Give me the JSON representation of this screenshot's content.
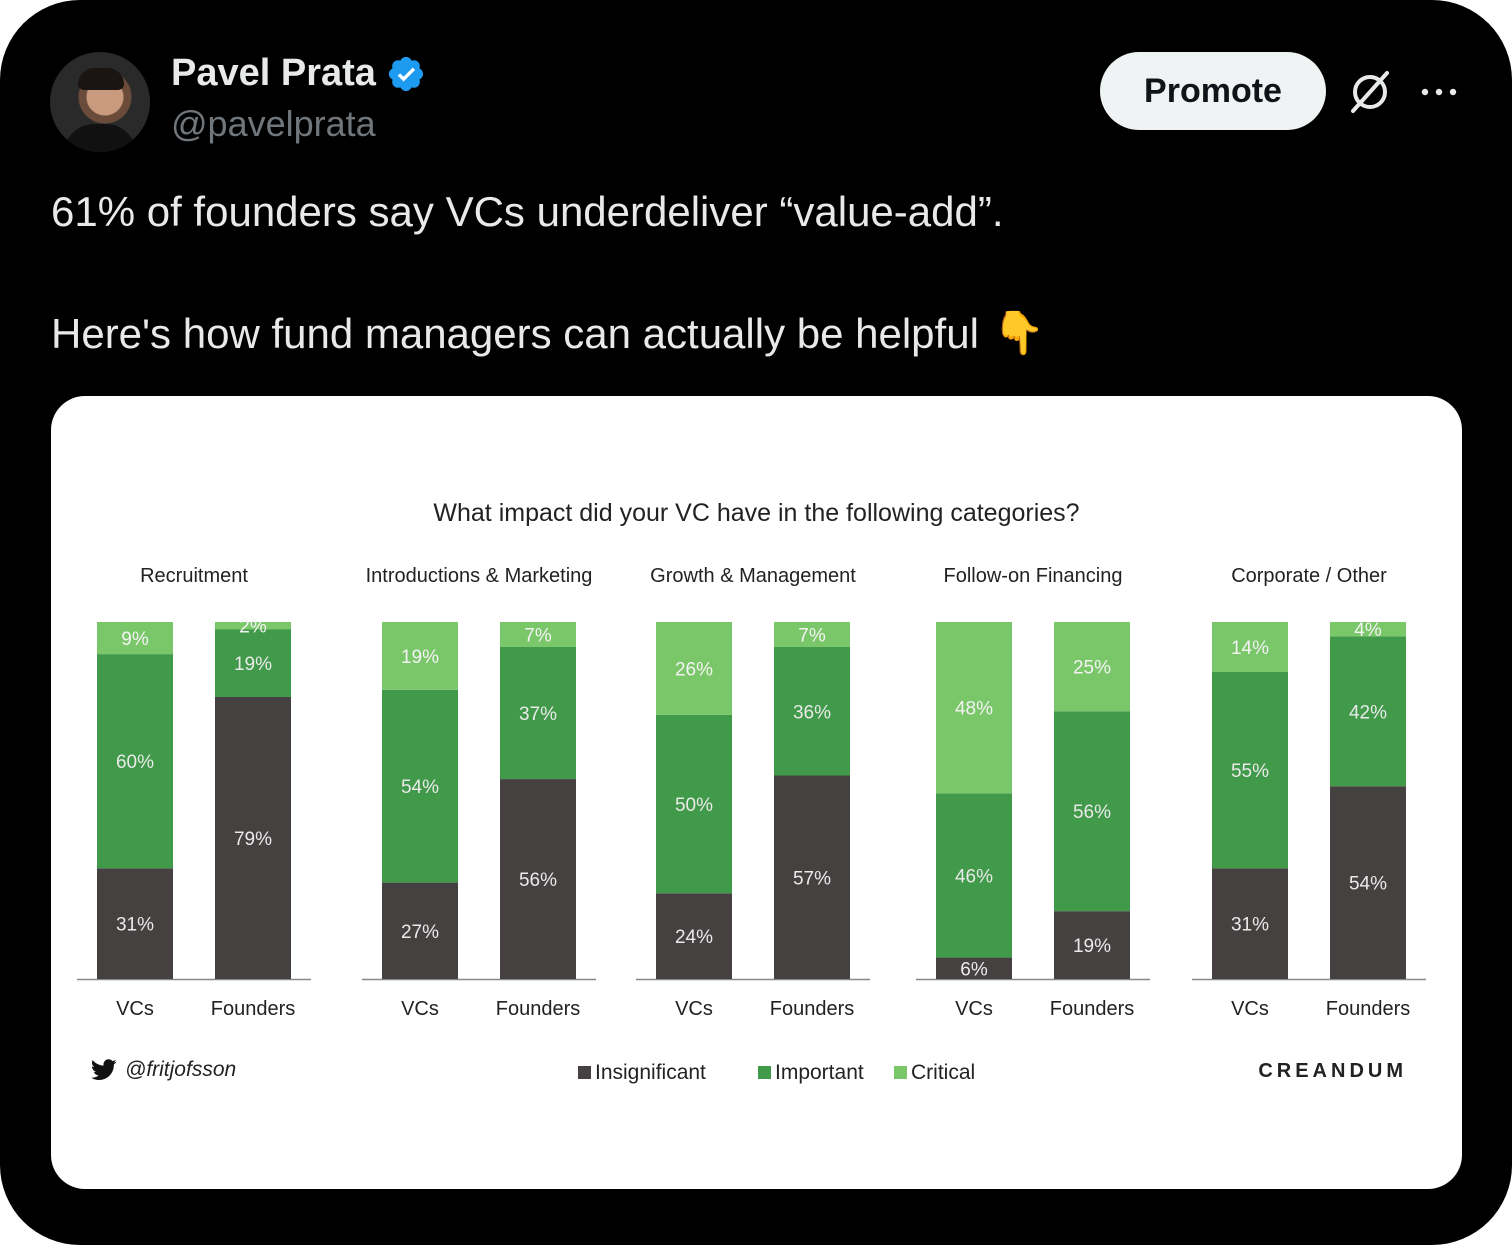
{
  "tweet": {
    "author_name": "Pavel Prata",
    "author_handle": "@pavelprata",
    "promote_label": "Promote",
    "line1": "61% of founders say VCs underdeliver “value-add”.",
    "line2": "Here's how fund managers can actually be helpful",
    "emoji": "👇"
  },
  "media": {
    "source_handle": "@fritjofsson",
    "brand": "CREANDUM"
  },
  "chart_data": {
    "type": "bar",
    "stacked": true,
    "title": "What impact did your VC have in the following categories?",
    "groups": [
      "Recruitment",
      "Introductions & Marketing",
      "Growth & Management",
      "Follow-on Financing",
      "Corporate / Other"
    ],
    "categories": [
      "VCs",
      "Founders"
    ],
    "series": [
      {
        "name": "Insignificant",
        "color": "#454141",
        "values": [
          [
            31,
            79
          ],
          [
            27,
            56
          ],
          [
            24,
            57
          ],
          [
            6,
            19
          ],
          [
            31,
            54
          ]
        ]
      },
      {
        "name": "Important",
        "color": "#41994a",
        "values": [
          [
            60,
            19
          ],
          [
            54,
            37
          ],
          [
            50,
            36
          ],
          [
            46,
            56
          ],
          [
            55,
            42
          ]
        ]
      },
      {
        "name": "Critical",
        "color": "#7ac76a",
        "values": [
          [
            9,
            2
          ],
          [
            19,
            7
          ],
          [
            26,
            7
          ],
          [
            48,
            25
          ],
          [
            14,
            4
          ]
        ]
      }
    ],
    "ylim": [
      0,
      100
    ],
    "legend": "bottom"
  }
}
